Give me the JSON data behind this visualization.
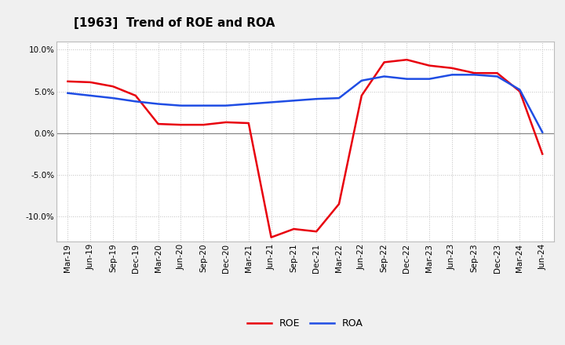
{
  "title": "[1963]  Trend of ROE and ROA",
  "labels": [
    "Mar-19",
    "Jun-19",
    "Sep-19",
    "Dec-19",
    "Mar-20",
    "Jun-20",
    "Sep-20",
    "Dec-20",
    "Mar-21",
    "Jun-21",
    "Sep-21",
    "Dec-21",
    "Mar-22",
    "Jun-22",
    "Sep-22",
    "Dec-22",
    "Mar-23",
    "Jun-23",
    "Sep-23",
    "Dec-23",
    "Mar-24",
    "Jun-24"
  ],
  "ROE": [
    6.2,
    6.1,
    5.6,
    4.5,
    1.1,
    1.0,
    1.0,
    1.3,
    1.2,
    -12.5,
    -11.5,
    -11.8,
    -8.5,
    4.5,
    8.5,
    8.8,
    8.1,
    7.8,
    7.2,
    7.2,
    5.0,
    -2.5
  ],
  "ROA": [
    4.8,
    4.5,
    4.2,
    3.8,
    3.5,
    3.3,
    3.3,
    3.3,
    3.5,
    3.7,
    3.9,
    4.1,
    4.2,
    6.3,
    6.8,
    6.5,
    6.5,
    7.0,
    7.0,
    6.8,
    5.2,
    0.1
  ],
  "roe_color": "#e8000d",
  "roa_color": "#1f4de4",
  "background_color": "#f0f0f0",
  "plot_bg_color": "#ffffff",
  "ylim": [
    -13,
    11
  ],
  "yticks": [
    -10.0,
    -5.0,
    0.0,
    5.0,
    10.0
  ],
  "title_fontsize": 11,
  "legend_fontsize": 9,
  "tick_fontsize": 7.5,
  "line_width": 1.8
}
